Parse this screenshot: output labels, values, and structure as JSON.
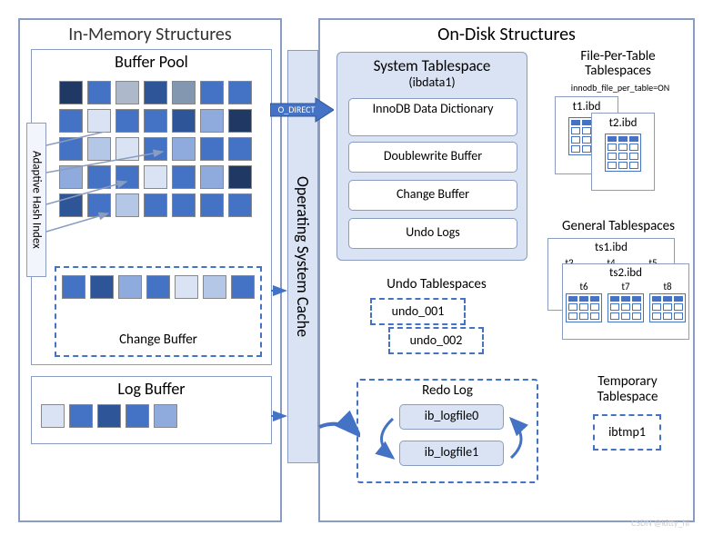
{
  "colors": {
    "border_main": "#8a9cc0",
    "border_dash": "#4472c4",
    "fill_light": "#dae3f3",
    "fill_pale": "#f2f5fb",
    "text": "#333333",
    "bg": "#ffffff"
  },
  "fonts": {
    "title": 20,
    "section": 18,
    "sub": 15,
    "item": 14,
    "small": 12,
    "tiny": 10
  },
  "in_memory": {
    "title": "In-Memory Structures",
    "buffer_pool": {
      "label": "Buffer Pool",
      "grid": {
        "rows": 5,
        "cols": 7,
        "cell_size": 26,
        "gap": 5,
        "colors": [
          [
            "#1f3864",
            "#4472c4",
            "#adb9ca",
            "#2e5597",
            "#8497b0",
            "#4472c4",
            "#4472c4"
          ],
          [
            "#4472c4",
            "#dae3f3",
            "#4472c4",
            "#4472c4",
            "#2e5597",
            "#8faadc",
            "#1f3864"
          ],
          [
            "#4472c4",
            "#b4c7e7",
            "#dae3f3",
            "#4472c4",
            "#8faadc",
            "#4472c4",
            "#4472c4"
          ],
          [
            "#8faadc",
            "#4472c4",
            "#4472c4",
            "#dae3f3",
            "#4472c4",
            "#8faadc",
            "#1f3864"
          ],
          [
            "#2e5597",
            "#4472c4",
            "#b4c7e7",
            "#4472c4",
            "#4472c4",
            "#4472c4",
            "#4472c4"
          ]
        ]
      },
      "adaptive_hash": "Adaptive Hash Index",
      "change_buffer": {
        "label": "Change Buffer",
        "row_colors": [
          "#4472c4",
          "#2e5597",
          "#8faadc",
          "#4472c4",
          "#dae3f3",
          "#b4c7e7",
          "#4472c4"
        ]
      }
    },
    "log_buffer": {
      "label": "Log Buffer",
      "row_colors": [
        "#dae3f3",
        "#4472c4",
        "#2e5597",
        "#4472c4",
        "#8faadc"
      ]
    }
  },
  "os_cache": {
    "label": "Operating System Cache",
    "o_direct": "O_DIRECT"
  },
  "on_disk": {
    "title": "On-Disk Structures",
    "system_tablespace": {
      "title": "System Tablespace",
      "subtitle": "(ibdata1)",
      "items": [
        "InnoDB Data Dictionary",
        "Doublewrite Buffer",
        "Change Buffer",
        "Undo Logs"
      ]
    },
    "undo_tablespaces": {
      "label": "Undo Tablespaces",
      "files": [
        "undo_001",
        "undo_002"
      ]
    },
    "redo_log": {
      "label": "Redo Log",
      "files": [
        "ib_logfile0",
        "ib_logfile1"
      ]
    },
    "file_per_table": {
      "label": "File-Per-Table Tablespaces",
      "setting": "innodb_file_per_table=ON",
      "files": [
        "t1.ibd",
        "t2.ibd"
      ]
    },
    "general_tablespaces": {
      "label": "General Tablespaces",
      "groups": [
        {
          "file": "ts1.ibd",
          "tables": [
            "t3",
            "t4",
            "t5"
          ]
        },
        {
          "file": "ts2.ibd",
          "tables": [
            "t6",
            "t7",
            "t8"
          ]
        }
      ]
    },
    "temporary": {
      "label": "Temporary Tablespace",
      "file": "ibtmp1"
    }
  },
  "watermark": "CSDN @kitty_hi"
}
